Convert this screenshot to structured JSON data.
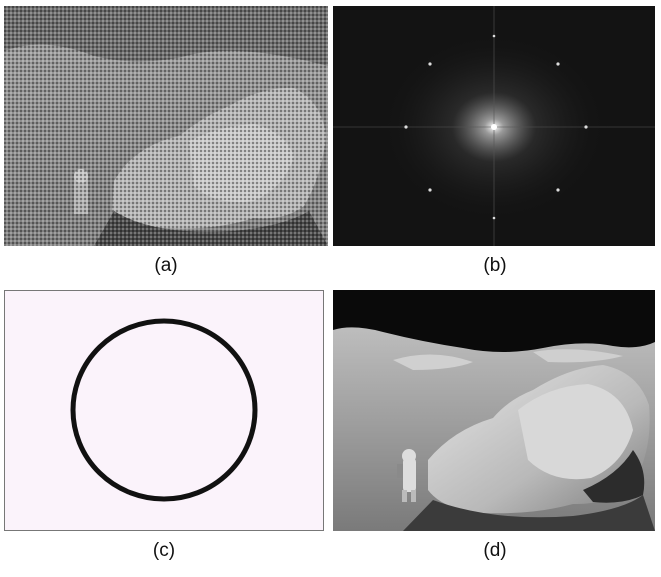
{
  "figure": {
    "panels": [
      {
        "id": "a",
        "caption": "(a)",
        "content": "moon-photo-with-periodic-noise"
      },
      {
        "id": "b",
        "caption": "(b)",
        "content": "fourier-spectrum"
      },
      {
        "id": "c",
        "caption": "(c)",
        "content": "band-reject-filter-ring"
      },
      {
        "id": "d",
        "caption": "(d)",
        "content": "restored-moon-photo"
      }
    ]
  },
  "colors": {
    "spectrum_background": "#0c0c0c",
    "filter_background": "#fbf3fb",
    "filter_ring": "#111111",
    "lunar_sky": "#0a0a0a"
  }
}
